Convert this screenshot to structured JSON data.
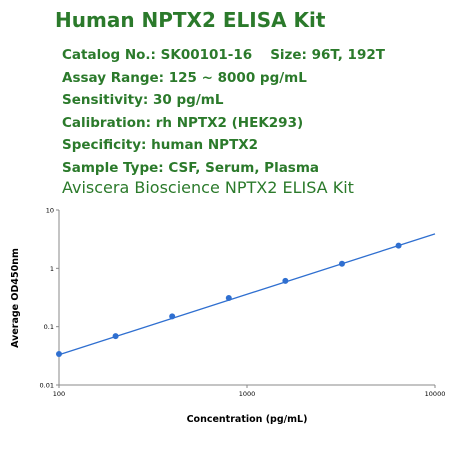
{
  "header": {
    "title": "Human NPTX2 ELISA Kit"
  },
  "info": {
    "catalog": "Catalog No.: SK00101-16",
    "size": "Size: 96T, 192T",
    "assay_range": "Assay Range: 125 ~ 8000 pg/mL",
    "sensitivity": "Sensitivity: 30 pg/mL",
    "calibration": "Calibration: rh NPTX2 (HEK293)",
    "specificity": "Specificity: human NPTX2",
    "sample_type": "Sample Type: CSF, Serum, Plasma"
  },
  "brand_line": "Aviscera Bioscience NPTX2 ELISA Kit",
  "colors": {
    "heading_green": "#2b7a2b",
    "series_blue": "#2f6fd0",
    "axis": "#888888"
  },
  "chart_data": {
    "type": "scatter",
    "title": "",
    "xlabel": "Concentration (pg/mL)",
    "ylabel": "Average OD450nm",
    "xscale": "log",
    "yscale": "log",
    "xlim": [
      100,
      10000
    ],
    "ylim": [
      0.01,
      10
    ],
    "xticks": [
      100,
      1000,
      10000
    ],
    "xtick_labels": [
      "100",
      "1000",
      "10000"
    ],
    "yticks": [
      10,
      1,
      0.1,
      0.01
    ],
    "ytick_labels": [
      "10",
      "1",
      "0.1",
      "0.01"
    ],
    "grid": false,
    "legend": "none",
    "series": [
      {
        "x": [
          100,
          200,
          400,
          800,
          1600,
          3200,
          6400
        ],
        "y": [
          0.034,
          0.069,
          0.15,
          0.31,
          0.61,
          1.2,
          2.45
        ]
      }
    ],
    "fit_line": {
      "x": [
        100,
        10000
      ],
      "y": [
        0.033,
        3.9
      ]
    }
  }
}
